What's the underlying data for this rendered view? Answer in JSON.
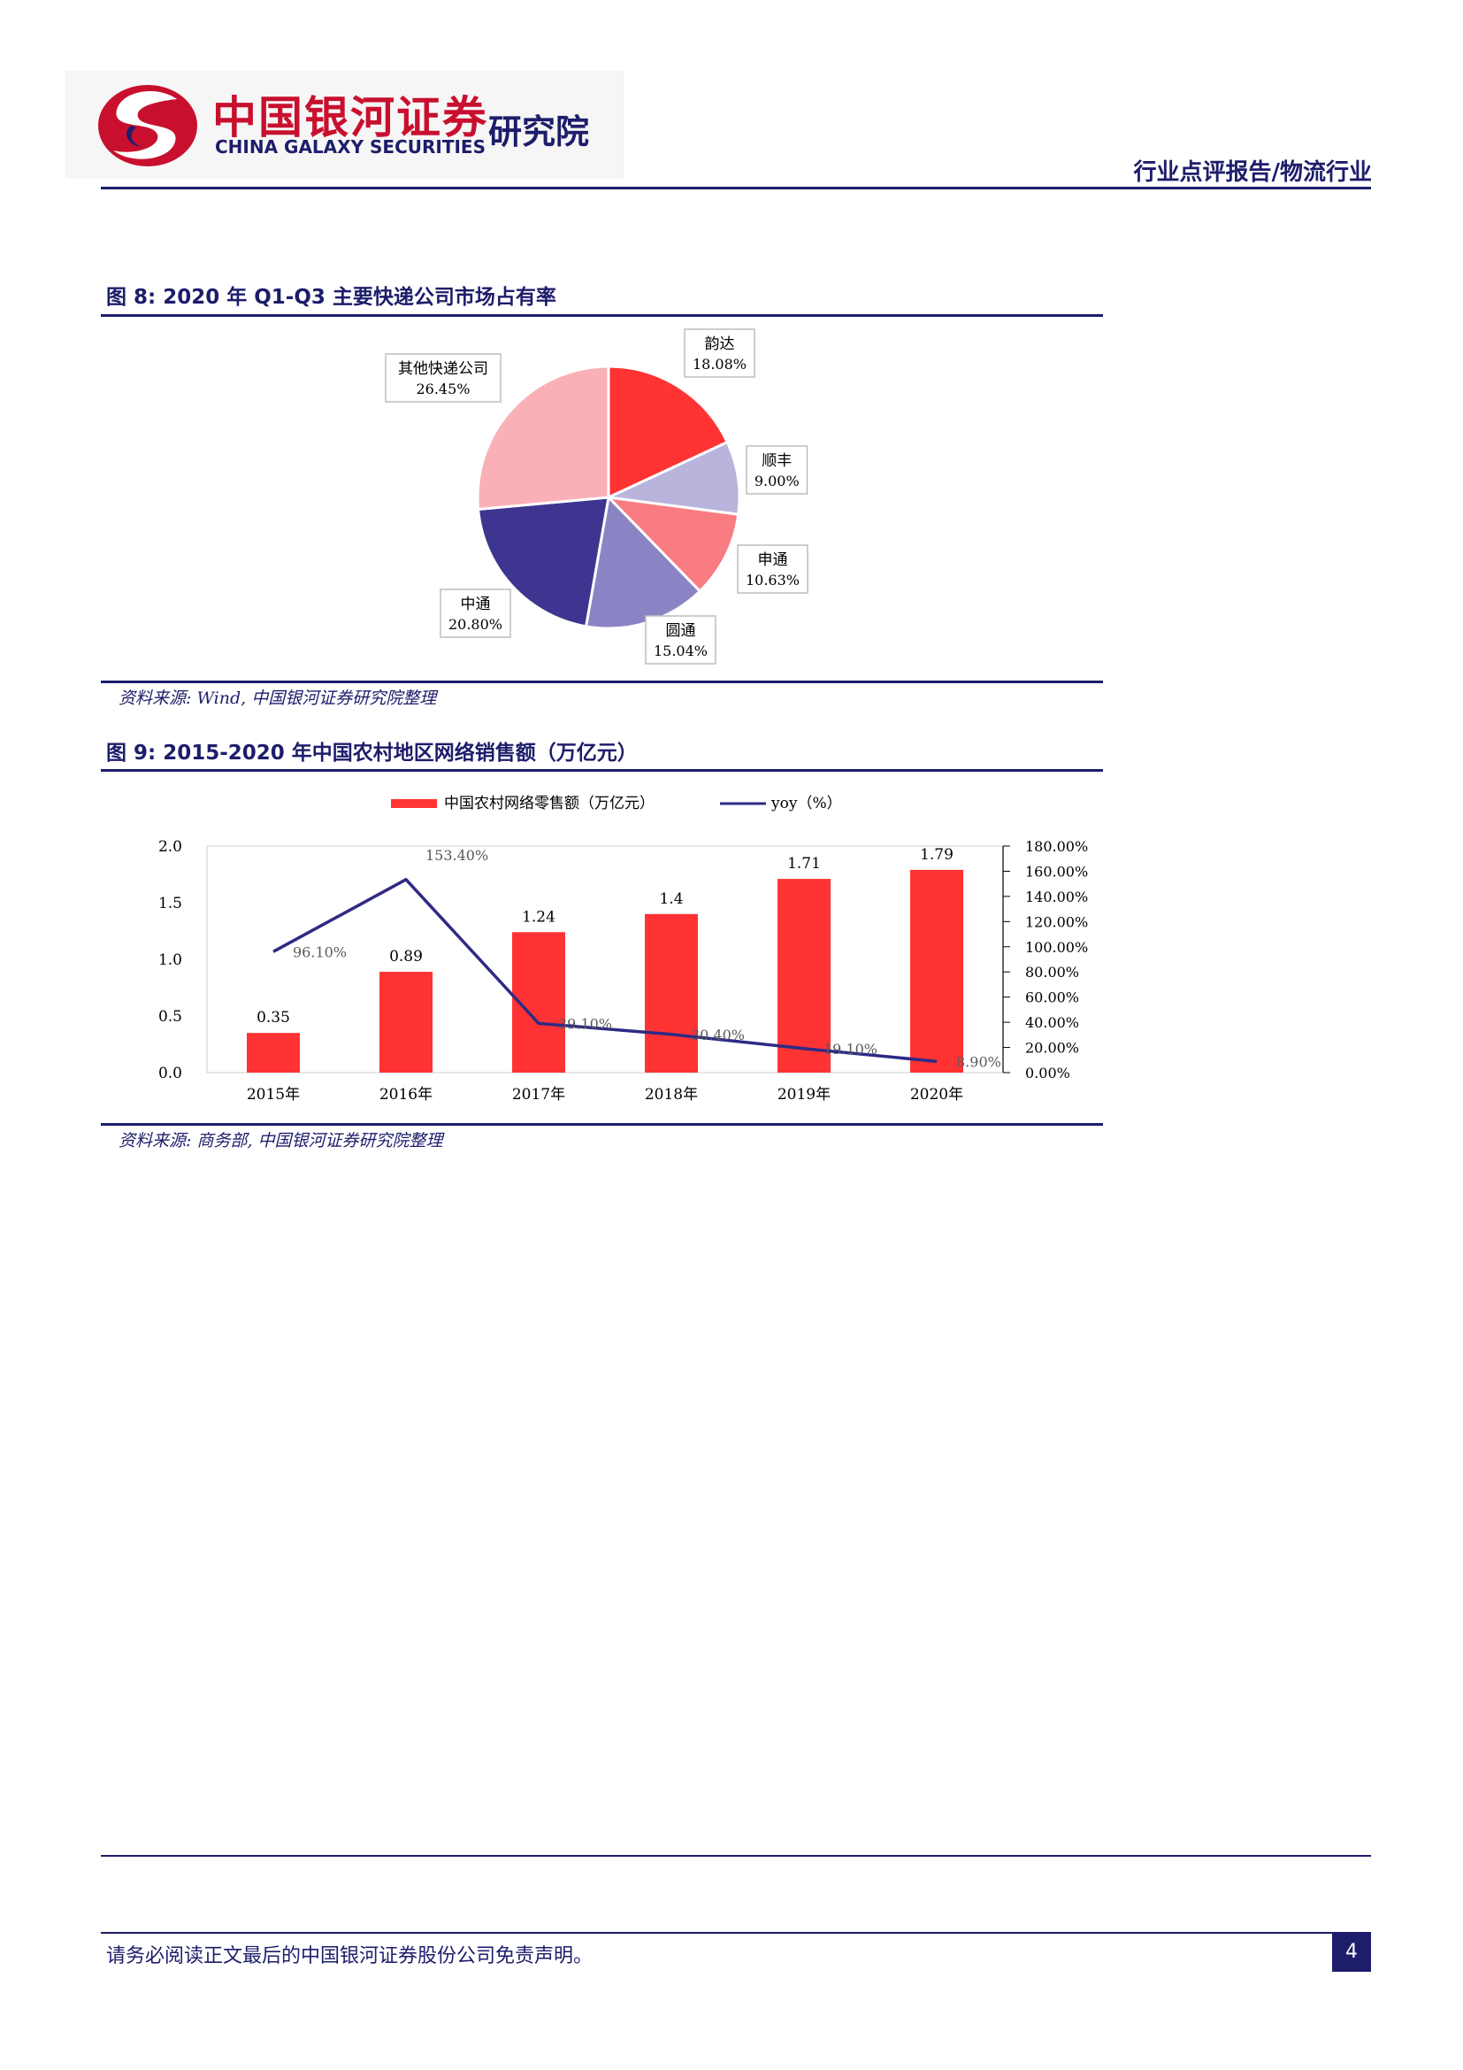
{
  "header": {
    "logo_cn": "中国银河证券",
    "logo_en": "CHINA GALAXY SECURITIES",
    "logo_institute": "研究院",
    "report_type": "行业点评报告/物流行业"
  },
  "figures": [
    {
      "title": "图 8: 2020 年 Q1-Q3 主要快递公司市场占有率",
      "source": "资料来源: Wind, 中国银河证券研究院整理"
    },
    {
      "title": "图 9: 2015-2020 年中国农村地区网络销售额（万亿元）",
      "source": "资料来源: 商务部, 中国银河证券研究院整理"
    }
  ],
  "chart_data": [
    {
      "type": "pie",
      "slices": [
        {
          "label": "韵达",
          "value": 18.08,
          "value_label": "18.08%",
          "color": "#ff3333"
        },
        {
          "label": "顺丰",
          "value": 9.0,
          "value_label": "9.00%",
          "color": "#b9b4dc"
        },
        {
          "label": "申通",
          "value": 10.63,
          "value_label": "10.63%",
          "color": "#f87c82"
        },
        {
          "label": "圆通",
          "value": 15.04,
          "value_label": "15.04%",
          "color": "#8b84c4"
        },
        {
          "label": "中通",
          "value": 20.8,
          "value_label": "20.80%",
          "color": "#3e3590"
        },
        {
          "label": "其他快递公司",
          "value": 26.45,
          "value_label": "26.45%",
          "color": "#f9b1b7"
        }
      ]
    },
    {
      "type": "bar",
      "categories": [
        "2015年",
        "2016年",
        "2017年",
        "2018年",
        "2019年",
        "2020年"
      ],
      "series": [
        {
          "name": "中国农村网络零售额（万亿元）",
          "type": "bar",
          "axis": "left",
          "color": "#ff3333",
          "values": [
            0.35,
            0.89,
            1.24,
            1.4,
            1.71,
            1.79
          ],
          "labels": [
            "0.35",
            "0.89",
            "1.24",
            "1.4",
            "1.71",
            "1.79"
          ]
        },
        {
          "name": "yoy（%）",
          "type": "line",
          "axis": "right",
          "color": "#2f2a85",
          "values": [
            96.1,
            153.4,
            39.1,
            30.4,
            19.1,
            8.9
          ],
          "labels": [
            "96.10%",
            "153.40%",
            "39.10%",
            "30.40%",
            "19.10%",
            "8.90%"
          ]
        }
      ],
      "ylim": [
        0,
        2.0
      ],
      "y_ticks": [
        "0.0",
        "0.5",
        "1.0",
        "1.5",
        "2.0"
      ],
      "y2lim": [
        0,
        180
      ],
      "y2_ticks": [
        "0.00%",
        "20.00%",
        "40.00%",
        "60.00%",
        "80.00%",
        "100.00%",
        "120.00%",
        "140.00%",
        "160.00%",
        "180.00%"
      ],
      "legend_position": "top"
    }
  ],
  "footer": {
    "disclaimer": "请务必阅读正文最后的中国银河证券股份公司免责声明。",
    "page_number": "4"
  }
}
